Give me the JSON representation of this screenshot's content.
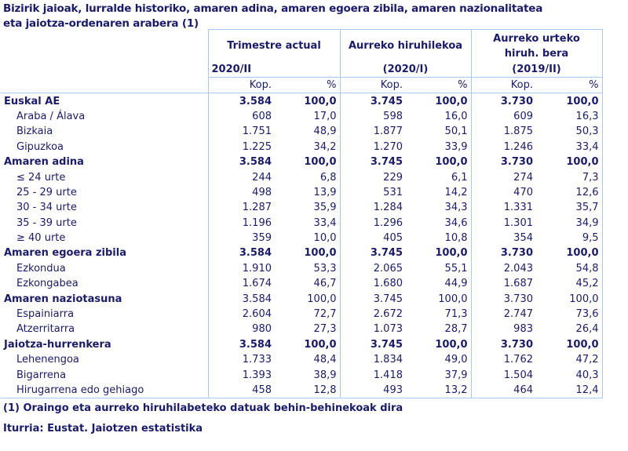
{
  "title_line1": "Bizirik jaioak, lurralde historiko, amaren adina, amaren egoera zibila, amaren nazionalitatea",
  "title_line2": "eta jaiotza-ordenaren arabera (1)",
  "columns": [
    {
      "heading": "Trimestre actual",
      "period": "2020/II"
    },
    {
      "heading": "Aurreko hiruhilekoa",
      "period": "(2020/I)"
    },
    {
      "heading_line1": "Aurreko urteko",
      "heading_line2": "hiruh. bera",
      "period": "(2019/II)"
    }
  ],
  "subheaders": {
    "count": "Kop.",
    "percent": "%"
  },
  "rows": [
    {
      "label": "Euskal AE",
      "bold": true,
      "values": [
        "3.584",
        "100,0",
        "3.745",
        "100,0",
        "3.730",
        "100,0"
      ]
    },
    {
      "label": "Araba / Álava",
      "values": [
        "608",
        "17,0",
        "598",
        "16,0",
        "609",
        "16,3"
      ]
    },
    {
      "label": "Bizkaia",
      "values": [
        "1.751",
        "48,9",
        "1.877",
        "50,1",
        "1.875",
        "50,3"
      ]
    },
    {
      "label": "Gipuzkoa",
      "values": [
        "1.225",
        "34,2",
        "1.270",
        "33,9",
        "1.246",
        "33,4"
      ]
    },
    {
      "label": "Amaren adina",
      "bold": true,
      "values": [
        "3.584",
        "100,0",
        "3.745",
        "100,0",
        "3.730",
        "100,0"
      ]
    },
    {
      "label": "≤ 24 urte",
      "values": [
        "244",
        "6,8",
        "229",
        "6,1",
        "274",
        "7,3"
      ]
    },
    {
      "label": "25 - 29 urte",
      "values": [
        "498",
        "13,9",
        "531",
        "14,2",
        "470",
        "12,6"
      ]
    },
    {
      "label": "30 - 34 urte",
      "values": [
        "1.287",
        "35,9",
        "1.284",
        "34,3",
        "1.331",
        "35,7"
      ]
    },
    {
      "label": "35 - 39 urte",
      "values": [
        "1.196",
        "33,4",
        "1.296",
        "34,6",
        "1.301",
        "34,9"
      ]
    },
    {
      "label": "≥ 40 urte",
      "values": [
        "359",
        "10,0",
        "405",
        "10,8",
        "354",
        "9,5"
      ]
    },
    {
      "label": "Amaren egoera zibila",
      "bold": true,
      "values": [
        "3.584",
        "100,0",
        "3.745",
        "100,0",
        "3.730",
        "100,0"
      ]
    },
    {
      "label": "Ezkondua",
      "values": [
        "1.910",
        "53,3",
        "2.065",
        "55,1",
        "2.043",
        "54,8"
      ]
    },
    {
      "label": "Ezkongabea",
      "values": [
        "1.674",
        "46,7",
        "1.680",
        "44,9",
        "1.687",
        "45,2"
      ]
    },
    {
      "label": "Amaren naziotasuna",
      "bold": true,
      "plain_values": true,
      "values": [
        "3.584",
        "100,0",
        "3.745",
        "100,0",
        "3.730",
        "100,0"
      ]
    },
    {
      "label": "Espainiarra",
      "values": [
        "2.604",
        "72,7",
        "2.672",
        "71,3",
        "2.747",
        "73,6"
      ]
    },
    {
      "label": "Atzerritarra",
      "values": [
        "980",
        "27,3",
        "1.073",
        "28,7",
        "983",
        "26,4"
      ]
    },
    {
      "label": "Jaiotza-hurrenkera",
      "bold": true,
      "values": [
        "3.584",
        "100,0",
        "3.745",
        "100,0",
        "3.730",
        "100,0"
      ]
    },
    {
      "label": "Lehenengoa",
      "values": [
        "1.733",
        "48,4",
        "1.834",
        "49,0",
        "1.762",
        "47,2"
      ]
    },
    {
      "label": "Bigarrena",
      "values": [
        "1.393",
        "38,9",
        "1.418",
        "37,9",
        "1.504",
        "40,3"
      ]
    },
    {
      "label": "Hirugarrena edo gehiago",
      "values": [
        "458",
        "12,8",
        "493",
        "13,2",
        "464",
        "12,4"
      ]
    }
  ],
  "footnote": "(1) Oraingo eta aurreko hiruhilabeteko datuak behin-behinekoak dira",
  "source": "Iturria: Eustat. Jaiotzen estatistika",
  "colors": {
    "text": "#1b1b6b",
    "border": "#a9c9ef"
  }
}
